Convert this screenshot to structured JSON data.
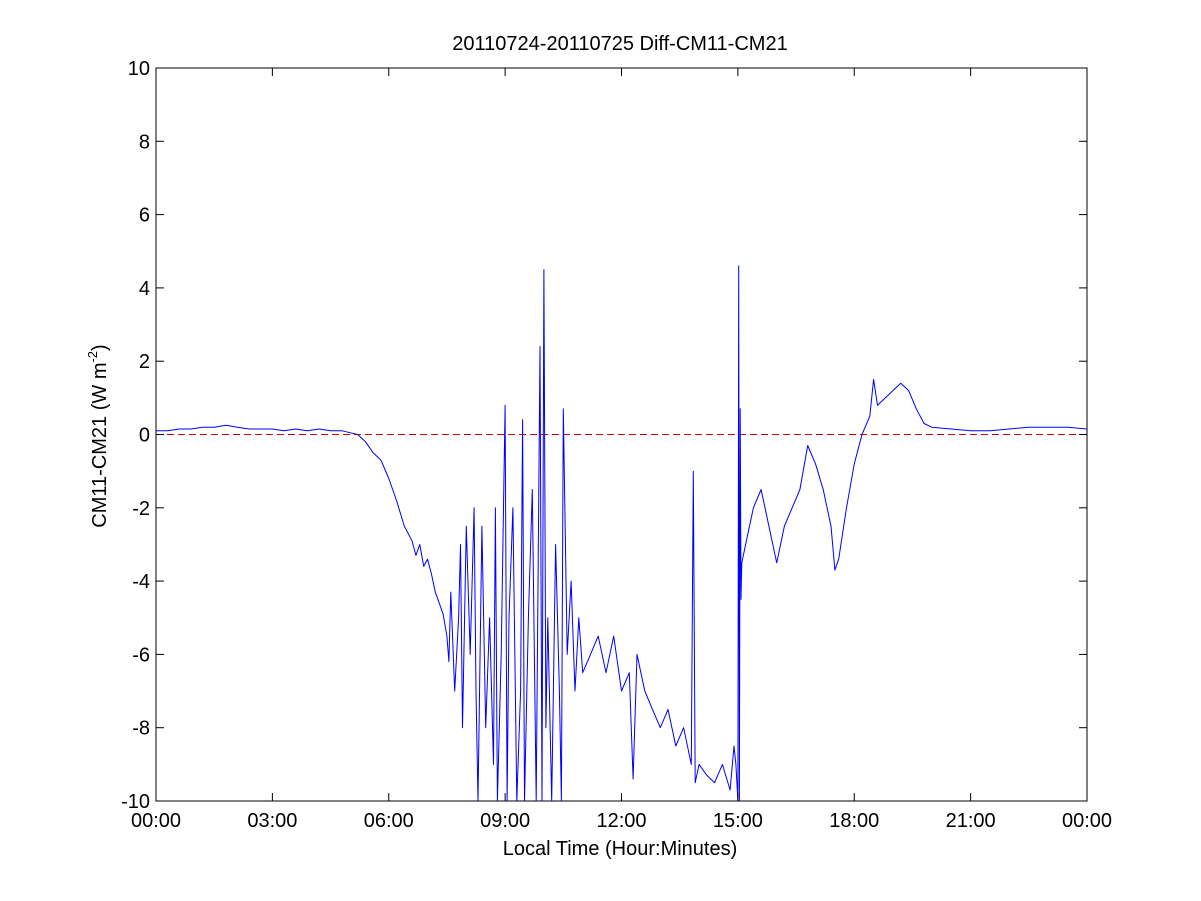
{
  "chart_data": {
    "type": "line",
    "title": "20110724-20110725 Diff-CM11-CM21",
    "xlabel": "Local Time (Hour:Minutes)",
    "ylabel": {
      "base": "CM11-CM21 (W m",
      "sup": "-2",
      "end": ")"
    },
    "xlim": [
      0,
      24
    ],
    "ylim": [
      -10,
      10
    ],
    "x_unit": "hours",
    "x_ticks": [
      {
        "value": 0,
        "label": "00:00"
      },
      {
        "value": 3,
        "label": "03:00"
      },
      {
        "value": 6,
        "label": "06:00"
      },
      {
        "value": 9,
        "label": "09:00"
      },
      {
        "value": 12,
        "label": "12:00"
      },
      {
        "value": 15,
        "label": "15:00"
      },
      {
        "value": 18,
        "label": "18:00"
      },
      {
        "value": 21,
        "label": "21:00"
      },
      {
        "value": 24,
        "label": "00:00"
      }
    ],
    "y_ticks": [
      {
        "value": 10,
        "label": "10"
      },
      {
        "value": 8,
        "label": "8"
      },
      {
        "value": 6,
        "label": "6"
      },
      {
        "value": 4,
        "label": "4"
      },
      {
        "value": 2,
        "label": "2"
      },
      {
        "value": 0,
        "label": "0"
      },
      {
        "value": -2,
        "label": "-2"
      },
      {
        "value": -4,
        "label": "-4"
      },
      {
        "value": -6,
        "label": "-6"
      },
      {
        "value": -8,
        "label": "-8"
      },
      {
        "value": -10,
        "label": "-10"
      }
    ],
    "reference_line": {
      "y": 0,
      "color": "#cc0000",
      "style": "dashed"
    },
    "grid": false,
    "series": [
      {
        "color": "#0000ff",
        "x": [
          0.0,
          0.3,
          0.6,
          0.9,
          1.2,
          1.5,
          1.8,
          2.1,
          2.4,
          2.7,
          3.0,
          3.3,
          3.6,
          3.9,
          4.2,
          4.5,
          4.8,
          5.0,
          5.2,
          5.4,
          5.6,
          5.8,
          6.0,
          6.2,
          6.4,
          6.6,
          6.7,
          6.8,
          6.9,
          7.0,
          7.1,
          7.2,
          7.3,
          7.4,
          7.5,
          7.55,
          7.6,
          7.7,
          7.8,
          7.85,
          7.9,
          8.0,
          8.1,
          8.2,
          8.25,
          8.3,
          8.4,
          8.5,
          8.6,
          8.7,
          8.75,
          8.8,
          8.9,
          9.0,
          9.05,
          9.1,
          9.2,
          9.3,
          9.4,
          9.45,
          9.5,
          9.6,
          9.7,
          9.8,
          9.9,
          9.95,
          10.0,
          10.05,
          10.1,
          10.2,
          10.3,
          10.4,
          10.45,
          10.5,
          10.6,
          10.7,
          10.8,
          10.9,
          11.0,
          11.2,
          11.4,
          11.6,
          11.8,
          12.0,
          12.2,
          12.3,
          12.4,
          12.6,
          12.8,
          13.0,
          13.2,
          13.4,
          13.6,
          13.8,
          13.85,
          13.9,
          14.0,
          14.2,
          14.4,
          14.6,
          14.8,
          14.9,
          14.95,
          15.0,
          15.02,
          15.04,
          15.06,
          15.08,
          15.1,
          15.2,
          15.4,
          15.6,
          15.8,
          16.0,
          16.2,
          16.4,
          16.6,
          16.8,
          17.0,
          17.2,
          17.4,
          17.5,
          17.6,
          17.8,
          18.0,
          18.2,
          18.4,
          18.5,
          18.6,
          18.8,
          19.0,
          19.2,
          19.4,
          19.6,
          19.8,
          20.0,
          20.5,
          21.0,
          21.5,
          22.0,
          22.5,
          23.0,
          23.5,
          24.0
        ],
        "y": [
          0.1,
          0.1,
          0.15,
          0.15,
          0.2,
          0.2,
          0.25,
          0.2,
          0.15,
          0.15,
          0.15,
          0.1,
          0.15,
          0.1,
          0.15,
          0.1,
          0.1,
          0.05,
          0.0,
          -0.2,
          -0.5,
          -0.7,
          -1.2,
          -1.8,
          -2.5,
          -2.9,
          -3.3,
          -3.0,
          -3.6,
          -3.4,
          -3.8,
          -4.3,
          -4.6,
          -4.9,
          -5.5,
          -6.2,
          -4.3,
          -7.0,
          -5.0,
          -3.0,
          -8.0,
          -2.5,
          -6.0,
          -2.0,
          -7.0,
          -10.0,
          -2.5,
          -8.0,
          -5.0,
          -9.0,
          -2.0,
          -10.0,
          -6.0,
          0.8,
          -10.0,
          -5.0,
          -2.0,
          -10.0,
          -7.0,
          0.4,
          -10.0,
          -5.0,
          -1.5,
          -10.0,
          2.4,
          -10.0,
          4.5,
          -8.0,
          -5.0,
          -10.0,
          -3.0,
          -7.0,
          -10.0,
          0.7,
          -6.0,
          -4.0,
          -7.0,
          -5.0,
          -6.5,
          -6.0,
          -5.5,
          -6.5,
          -5.5,
          -7.0,
          -6.5,
          -9.4,
          -6.0,
          -7.0,
          -7.5,
          -8.0,
          -7.5,
          -8.5,
          -8.0,
          -9.0,
          -1.0,
          -9.5,
          -9.0,
          -9.3,
          -9.5,
          -9.0,
          -9.7,
          -8.5,
          -9.0,
          -10.0,
          4.6,
          -10.0,
          0.7,
          -4.5,
          -3.5,
          -3.0,
          -2.0,
          -1.5,
          -2.5,
          -3.5,
          -2.5,
          -2.0,
          -1.5,
          -0.3,
          -0.8,
          -1.5,
          -2.5,
          -3.7,
          -3.4,
          -2.0,
          -0.8,
          0.0,
          0.5,
          1.5,
          0.8,
          1.0,
          1.2,
          1.4,
          1.2,
          0.7,
          0.3,
          0.2,
          0.15,
          0.1,
          0.1,
          0.15,
          0.2,
          0.2,
          0.2,
          0.15
        ]
      }
    ]
  }
}
